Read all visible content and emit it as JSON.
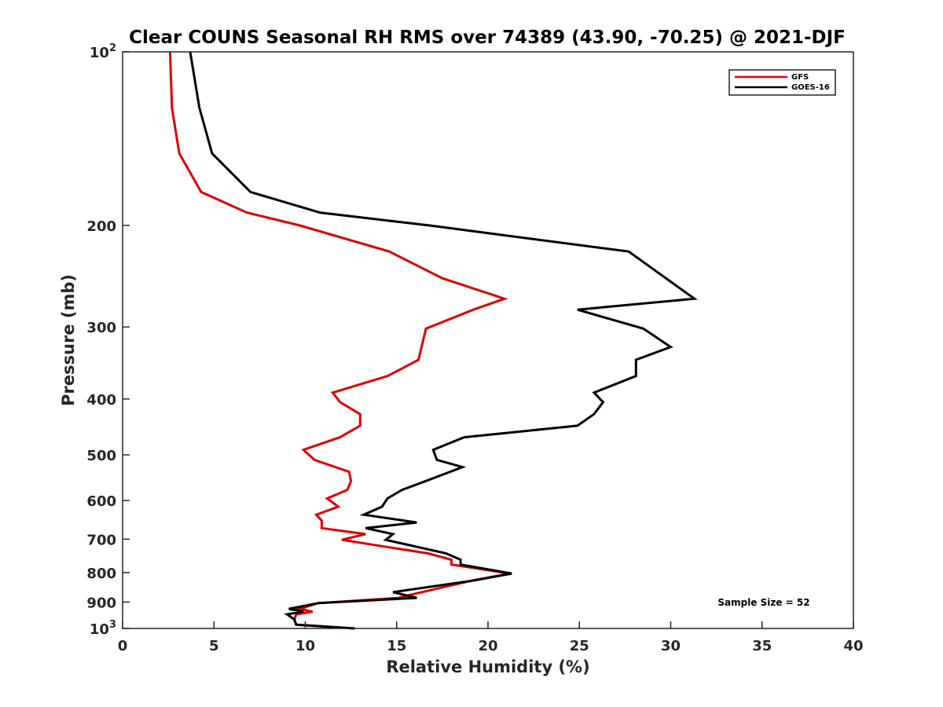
{
  "chart_data": {
    "type": "line",
    "title": "Clear COUNS Seasonal RH RMS over 74389 (43.90, -70.25) @ 2021-DJF",
    "xlabel": "Relative Humidity (%)",
    "ylabel": "Pressure (mb)",
    "xlim": [
      0,
      40
    ],
    "ylim": [
      100,
      1000
    ],
    "yscale": "log",
    "y_reversed": true,
    "x_ticks": [
      "0",
      "5",
      "10",
      "15",
      "20",
      "25",
      "30",
      "35",
      "40"
    ],
    "y_ticks": [
      {
        "value": 100,
        "base": "10",
        "exp": "2"
      },
      {
        "value": 200,
        "label": "200"
      },
      {
        "value": 300,
        "label": "300"
      },
      {
        "value": 400,
        "label": "400"
      },
      {
        "value": 500,
        "label": "500"
      },
      {
        "value": 600,
        "label": "600"
      },
      {
        "value": 700,
        "label": "700"
      },
      {
        "value": 800,
        "label": "800"
      },
      {
        "value": 900,
        "label": "900"
      },
      {
        "value": 1000,
        "base": "10",
        "exp": "3"
      }
    ],
    "legend_position": "top-right",
    "annotation": "Sample Size = 52",
    "series": [
      {
        "name": "GFS",
        "color": "#dd0000",
        "points": [
          [
            2.6,
            100
          ],
          [
            2.7,
            125
          ],
          [
            3.1,
            150
          ],
          [
            4.3,
            175
          ],
          [
            6.8,
            190
          ],
          [
            9.7,
            200
          ],
          [
            14.6,
            222
          ],
          [
            17.5,
            247
          ],
          [
            20.9,
            268
          ],
          [
            19.2,
            280
          ],
          [
            16.6,
            302
          ],
          [
            16.2,
            342
          ],
          [
            14.5,
            365
          ],
          [
            11.5,
            390
          ],
          [
            11.9,
            405
          ],
          [
            13.0,
            425
          ],
          [
            13.0,
            445
          ],
          [
            11.9,
            466
          ],
          [
            9.9,
            490
          ],
          [
            10.5,
            510
          ],
          [
            12.4,
            535
          ],
          [
            12.5,
            555
          ],
          [
            12.3,
            575
          ],
          [
            11.2,
            595
          ],
          [
            11.8,
            615
          ],
          [
            10.6,
            635
          ],
          [
            10.9,
            650
          ],
          [
            10.9,
            670
          ],
          [
            13.3,
            686
          ],
          [
            12.0,
            702
          ],
          [
            16.7,
            741
          ],
          [
            18.0,
            760
          ],
          [
            18.0,
            775
          ],
          [
            21.2,
            803
          ],
          [
            19.2,
            825
          ],
          [
            15.7,
            875
          ],
          [
            15.1,
            885
          ],
          [
            10.7,
            904
          ],
          [
            9.7,
            925
          ],
          [
            10.4,
            935
          ],
          [
            9.5,
            945
          ],
          [
            9.4,
            965
          ],
          [
            9.5,
            985
          ],
          [
            12.7,
            1000
          ]
        ]
      },
      {
        "name": "GOES-16",
        "color": "#000000",
        "points": [
          [
            3.7,
            100
          ],
          [
            4.2,
            125
          ],
          [
            4.9,
            150
          ],
          [
            7.0,
            175
          ],
          [
            10.8,
            190
          ],
          [
            16.8,
            200
          ],
          [
            27.7,
            222
          ],
          [
            31.3,
            268
          ],
          [
            24.9,
            280
          ],
          [
            28.5,
            302
          ],
          [
            30.0,
            325
          ],
          [
            28.1,
            342
          ],
          [
            28.1,
            365
          ],
          [
            25.8,
            390
          ],
          [
            26.3,
            405
          ],
          [
            25.8,
            425
          ],
          [
            24.9,
            445
          ],
          [
            18.7,
            466
          ],
          [
            17.0,
            490
          ],
          [
            17.2,
            510
          ],
          [
            18.6,
            525
          ],
          [
            16.6,
            555
          ],
          [
            15.3,
            575
          ],
          [
            14.5,
            595
          ],
          [
            14.2,
            615
          ],
          [
            13.2,
            635
          ],
          [
            16.1,
            655
          ],
          [
            13.3,
            670
          ],
          [
            14.8,
            686
          ],
          [
            14.4,
            702
          ],
          [
            17.7,
            741
          ],
          [
            18.5,
            760
          ],
          [
            18.5,
            775
          ],
          [
            21.3,
            803
          ],
          [
            19.3,
            825
          ],
          [
            14.8,
            865
          ],
          [
            16.1,
            885
          ],
          [
            10.7,
            904
          ],
          [
            9.1,
            925
          ],
          [
            9.9,
            935
          ],
          [
            9.0,
            945
          ],
          [
            9.4,
            965
          ],
          [
            9.5,
            985
          ],
          [
            12.7,
            1000
          ]
        ]
      }
    ]
  }
}
